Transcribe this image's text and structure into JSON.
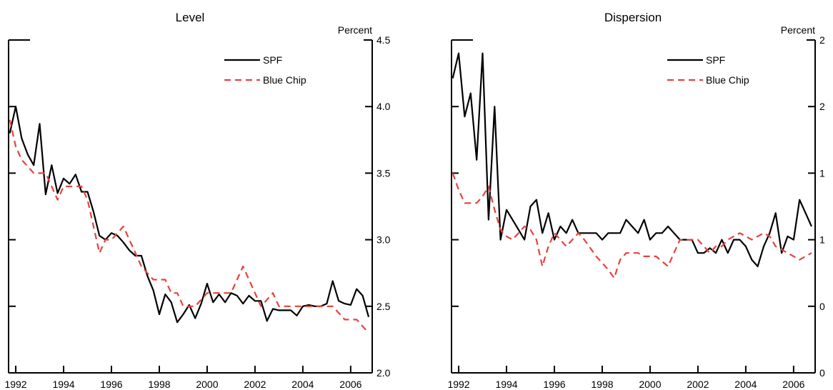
{
  "chart_data": [
    {
      "type": "line",
      "title": "Level",
      "unit_label": "Percent",
      "xlabel": "",
      "ylabel": "",
      "xlim": [
        1991.7,
        2006.9
      ],
      "ylim": [
        2.0,
        4.5
      ],
      "x_ticks": [
        1992,
        1994,
        1996,
        1998,
        2000,
        2002,
        2004,
        2006
      ],
      "x_tick_labels": [
        "1992",
        "1994",
        "1996",
        "1998",
        "2000",
        "2002",
        "2004",
        "2006"
      ],
      "y_ticks": [
        2.0,
        2.5,
        3.0,
        3.5,
        4.0,
        4.5
      ],
      "y_tick_labels": [
        "2.0",
        "2.5",
        "3.0",
        "3.5",
        "4.0",
        "4.5"
      ],
      "y_axis_side": "right",
      "grid": false,
      "legend_position": "top-right",
      "series": [
        {
          "name": "SPF",
          "color": "#000000",
          "dash": "solid",
          "x": [
            1991.75,
            1992.0,
            1992.25,
            1992.5,
            1992.75,
            1993.0,
            1993.25,
            1993.5,
            1993.75,
            1994.0,
            1994.25,
            1994.5,
            1994.75,
            1995.0,
            1995.25,
            1995.5,
            1995.75,
            1996.0,
            1996.25,
            1996.5,
            1996.75,
            1997.0,
            1997.25,
            1997.5,
            1997.75,
            1998.0,
            1998.25,
            1998.5,
            1998.75,
            1999.0,
            1999.25,
            1999.5,
            1999.75,
            2000.0,
            2000.25,
            2000.5,
            2000.75,
            2001.0,
            2001.25,
            2001.5,
            2001.75,
            2002.0,
            2002.25,
            2002.5,
            2002.75,
            2003.0,
            2003.25,
            2003.5,
            2003.75,
            2004.0,
            2004.25,
            2004.5,
            2004.75,
            2005.0,
            2005.25,
            2005.5,
            2005.75,
            2006.0,
            2006.25,
            2006.5,
            2006.75
          ],
          "values": [
            3.8,
            4.0,
            3.76,
            3.64,
            3.56,
            3.87,
            3.34,
            3.56,
            3.35,
            3.46,
            3.42,
            3.49,
            3.36,
            3.36,
            3.21,
            3.03,
            3.0,
            3.05,
            3.03,
            2.98,
            2.92,
            2.88,
            2.88,
            2.73,
            2.62,
            2.44,
            2.59,
            2.53,
            2.38,
            2.44,
            2.51,
            2.41,
            2.52,
            2.67,
            2.53,
            2.59,
            2.53,
            2.6,
            2.58,
            2.52,
            2.58,
            2.54,
            2.54,
            2.39,
            2.48,
            2.47,
            2.47,
            2.47,
            2.43,
            2.5,
            2.51,
            2.5,
            2.5,
            2.52,
            2.69,
            2.54,
            2.52,
            2.51,
            2.63,
            2.58,
            2.42
          ]
        },
        {
          "name": "Blue Chip",
          "color": "#e8413c",
          "dash": "dashed",
          "x": [
            1991.75,
            1992.0,
            1992.25,
            1992.5,
            1992.75,
            1993.0,
            1993.25,
            1993.5,
            1993.75,
            1994.0,
            1994.25,
            1994.5,
            1994.75,
            1995.0,
            1995.25,
            1995.5,
            1995.75,
            1996.0,
            1996.25,
            1996.5,
            1996.75,
            1997.0,
            1997.25,
            1997.5,
            1997.75,
            1998.0,
            1998.25,
            1998.5,
            1998.75,
            1999.0,
            1999.25,
            1999.5,
            1999.75,
            2000.0,
            2000.25,
            2000.5,
            2000.75,
            2001.0,
            2001.25,
            2001.5,
            2001.75,
            2002.0,
            2002.25,
            2002.5,
            2002.75,
            2003.0,
            2003.25,
            2003.5,
            2003.75,
            2004.0,
            2004.25,
            2004.5,
            2004.75,
            2005.0,
            2005.25,
            2005.5,
            2005.75,
            2006.0,
            2006.25,
            2006.5,
            2006.75
          ],
          "values": [
            3.9,
            3.7,
            3.6,
            3.55,
            3.5,
            3.5,
            3.5,
            3.4,
            3.3,
            3.4,
            3.4,
            3.4,
            3.4,
            3.3,
            3.1,
            2.9,
            3.0,
            3.0,
            3.05,
            3.1,
            3.0,
            2.9,
            2.8,
            2.75,
            2.7,
            2.7,
            2.7,
            2.6,
            2.6,
            2.5,
            2.5,
            2.5,
            2.55,
            2.6,
            2.6,
            2.6,
            2.6,
            2.6,
            2.7,
            2.8,
            2.7,
            2.6,
            2.5,
            2.55,
            2.6,
            2.5,
            2.5,
            2.5,
            2.5,
            2.5,
            2.5,
            2.5,
            2.5,
            2.5,
            2.5,
            2.45,
            2.4,
            2.4,
            2.4,
            2.35,
            2.3
          ]
        }
      ]
    },
    {
      "type": "line",
      "title": "Dispersion",
      "unit_label": "Percent",
      "xlabel": "",
      "ylabel": "",
      "xlim": [
        1991.7,
        2006.9
      ],
      "ylim": [
        0,
        2
      ],
      "x_ticks": [
        1992,
        1994,
        1996,
        1998,
        2000,
        2002,
        2004,
        2006
      ],
      "x_tick_labels": [
        "1992",
        "1994",
        "1996",
        "1998",
        "2000",
        "2002",
        "2004",
        "2006"
      ],
      "y_ticks": [
        0,
        0.4,
        0.8,
        1.2,
        1.6,
        2.0
      ],
      "y_tick_labels": [
        "0",
        "0",
        "1",
        "1",
        "2",
        "2"
      ],
      "y_axis_side": "right",
      "grid": false,
      "legend_position": "top-right",
      "series": [
        {
          "name": "SPF",
          "color": "#000000",
          "dash": "solid",
          "x": [
            1991.75,
            1992.0,
            1992.25,
            1992.5,
            1992.75,
            1993.0,
            1993.25,
            1993.5,
            1993.75,
            1994.0,
            1994.25,
            1994.5,
            1994.75,
            1995.0,
            1995.25,
            1995.5,
            1995.75,
            1996.0,
            1996.25,
            1996.5,
            1996.75,
            1997.0,
            1997.25,
            1997.5,
            1997.75,
            1998.0,
            1998.25,
            1998.5,
            1998.75,
            1999.0,
            1999.25,
            1999.5,
            1999.75,
            2000.0,
            2000.25,
            2000.5,
            2000.75,
            2001.0,
            2001.25,
            2001.5,
            2001.75,
            2002.0,
            2002.25,
            2002.5,
            2002.75,
            2003.0,
            2003.25,
            2003.5,
            2003.75,
            2004.0,
            2004.25,
            2004.5,
            2004.75,
            2005.0,
            2005.25,
            2005.5,
            2005.75,
            2006.0,
            2006.25,
            2006.5,
            2006.75
          ],
          "values": [
            1.77,
            1.92,
            1.54,
            1.68,
            1.28,
            1.92,
            0.92,
            1.6,
            0.8,
            0.98,
            0.92,
            0.86,
            0.8,
            1.0,
            1.04,
            0.84,
            0.96,
            0.8,
            0.88,
            0.84,
            0.92,
            0.84,
            0.84,
            0.84,
            0.84,
            0.8,
            0.84,
            0.84,
            0.84,
            0.92,
            0.88,
            0.84,
            0.92,
            0.8,
            0.84,
            0.84,
            0.88,
            0.84,
            0.8,
            0.8,
            0.8,
            0.72,
            0.72,
            0.75,
            0.72,
            0.8,
            0.72,
            0.8,
            0.8,
            0.76,
            0.68,
            0.64,
            0.76,
            0.84,
            0.96,
            0.72,
            0.82,
            0.8,
            1.04,
            0.96,
            0.88
          ]
        },
        {
          "name": "Blue Chip",
          "color": "#e8413c",
          "dash": "dashed",
          "x": [
            1991.75,
            1992.0,
            1992.25,
            1992.5,
            1992.75,
            1993.0,
            1993.25,
            1993.5,
            1993.75,
            1994.0,
            1994.25,
            1994.5,
            1994.75,
            1995.0,
            1995.25,
            1995.5,
            1995.75,
            1996.0,
            1996.25,
            1996.5,
            1996.75,
            1997.0,
            1997.25,
            1997.5,
            1997.75,
            1998.0,
            1998.25,
            1998.5,
            1998.75,
            1999.0,
            1999.25,
            1999.5,
            1999.75,
            2000.0,
            2000.25,
            2000.5,
            2000.75,
            2001.0,
            2001.25,
            2001.5,
            2001.75,
            2002.0,
            2002.25,
            2002.5,
            2002.75,
            2003.0,
            2003.25,
            2003.5,
            2003.75,
            2004.0,
            2004.25,
            2004.5,
            2004.75,
            2005.0,
            2005.25,
            2005.5,
            2005.75,
            2006.0,
            2006.25,
            2006.5,
            2006.75
          ],
          "values": [
            1.2,
            1.1,
            1.02,
            1.02,
            1.02,
            1.06,
            1.12,
            0.98,
            0.86,
            0.82,
            0.8,
            0.84,
            0.88,
            0.86,
            0.8,
            0.64,
            0.76,
            0.84,
            0.8,
            0.76,
            0.8,
            0.84,
            0.8,
            0.75,
            0.7,
            0.66,
            0.62,
            0.57,
            0.68,
            0.72,
            0.72,
            0.72,
            0.7,
            0.7,
            0.7,
            0.67,
            0.64,
            0.72,
            0.8,
            0.8,
            0.8,
            0.8,
            0.76,
            0.72,
            0.76,
            0.76,
            0.8,
            0.82,
            0.84,
            0.82,
            0.8,
            0.82,
            0.84,
            0.82,
            0.76,
            0.74,
            0.72,
            0.7,
            0.68,
            0.7,
            0.72
          ]
        }
      ]
    }
  ]
}
